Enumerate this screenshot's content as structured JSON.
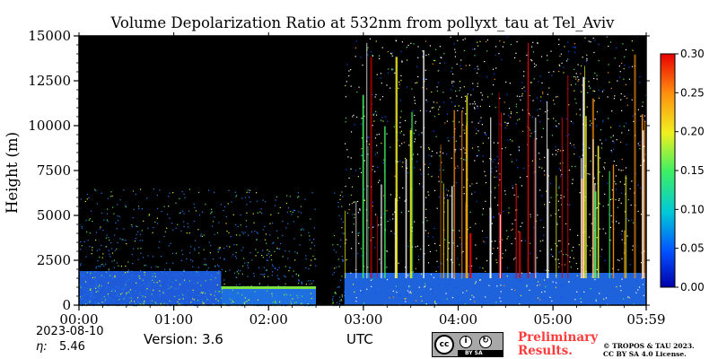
{
  "chart_data": {
    "type": "heatmap",
    "title": "Volume Depolarization Ratio at 532nm from pollyxt_tau at Tel_Aviv",
    "xlabel": "UTC",
    "ylabel": "Height (m)",
    "x_ticks": [
      "00:00",
      "01:00",
      "02:00",
      "03:00",
      "04:00",
      "05:00",
      "05:59"
    ],
    "x_tick_minutes": [
      0,
      60,
      120,
      180,
      240,
      300,
      359
    ],
    "xlim_minutes": [
      0,
      359
    ],
    "y_ticks": [
      0,
      2500,
      5000,
      7500,
      10000,
      12500,
      15000
    ],
    "ylim": [
      0,
      15000
    ],
    "colorbar": {
      "range": [
        0,
        0.3
      ],
      "ticks": [
        "0.00",
        "0.05",
        "0.10",
        "0.15",
        "0.20",
        "0.25",
        "0.30"
      ],
      "colors": [
        "#0000a8",
        "#0050ff",
        "#00c8d8",
        "#40f060",
        "#f0f020",
        "#ff9010",
        "#e80000"
      ]
    },
    "features": [
      {
        "start_min": 0,
        "end_min": 90,
        "desc_layer_top_m": 1800,
        "value_level": 0.05
      },
      {
        "start_min": 90,
        "end_min": 150,
        "layer_top_m": 1000,
        "value_level": 0.12
      },
      {
        "start_min": 150,
        "end_min": 160,
        "gap": true
      },
      {
        "start_min": 168,
        "end_min": 359,
        "layer_top_m": 1900,
        "value_level": 0.05
      }
    ],
    "grid": false
  },
  "footer": {
    "date": "2023-08-10",
    "eta_label": "η:",
    "eta_value": "5.46",
    "version": "Version: 3.6",
    "utc": "UTC",
    "prelim_line1": "Preliminary",
    "prelim_line2": "Results.",
    "credit_line1": "© TROPOS & TAU 2023.",
    "credit_line2": "CC BY SA 4.0 License.",
    "badge_cc": "cc",
    "badge_license": "BY  SA"
  },
  "colors": {
    "background": "#000000",
    "prelim": "#ff3b3b"
  }
}
